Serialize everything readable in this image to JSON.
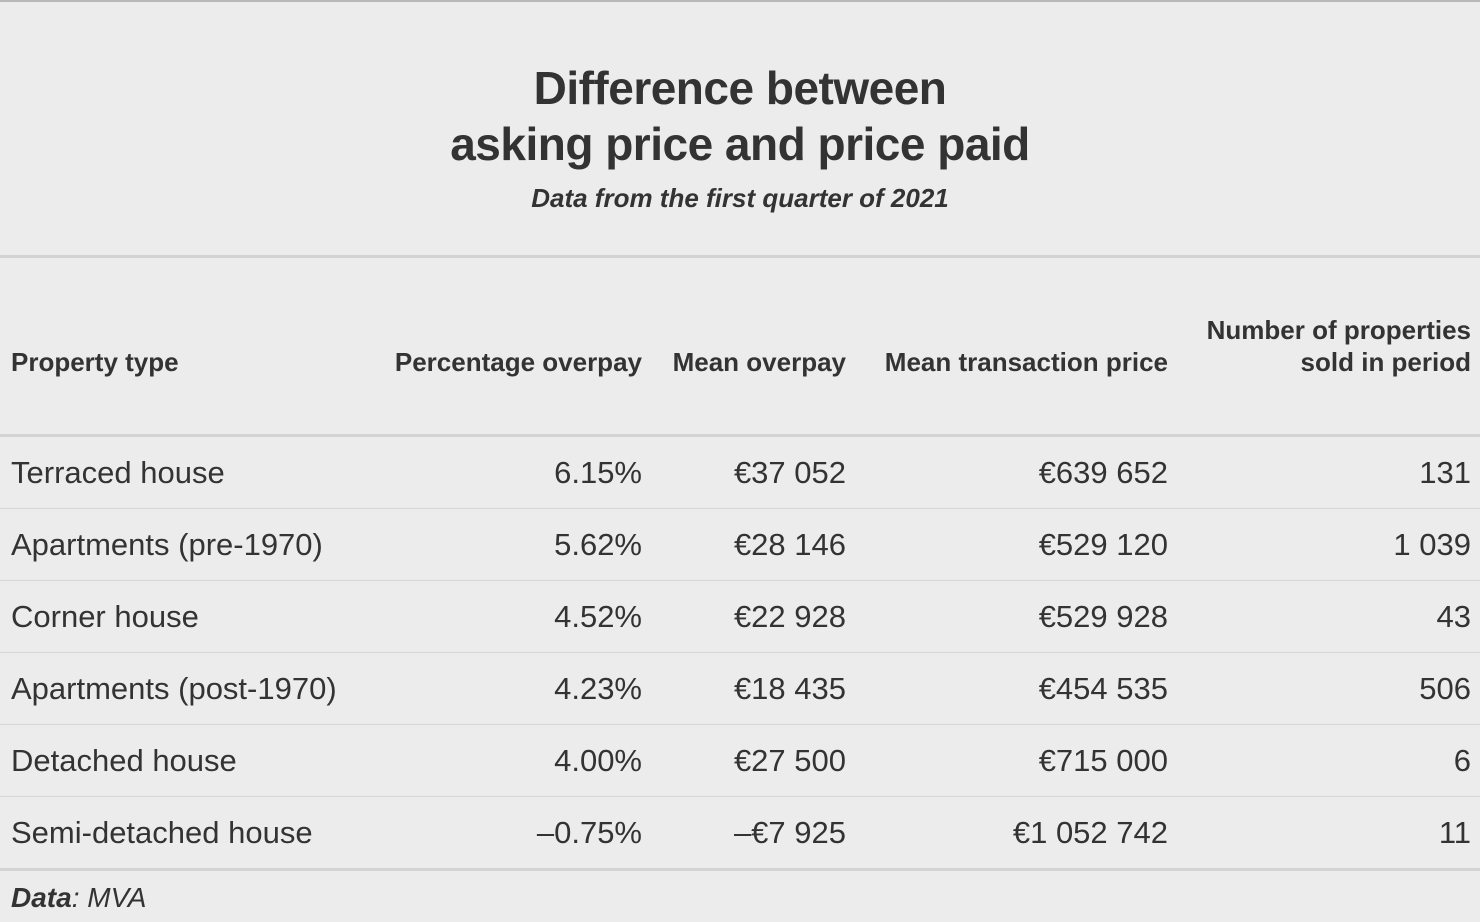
{
  "chart_data": {
    "type": "table",
    "title_line1": "Difference between",
    "title_line2": "asking price and price paid",
    "subtitle": "Data from the first quarter of 2021",
    "columns": [
      {
        "label": "Property type"
      },
      {
        "label": "Percentage overpay"
      },
      {
        "label": "Mean overpay"
      },
      {
        "label": "Mean transaction price"
      },
      {
        "label_line1": "Number of properties",
        "label_line2": "sold in period"
      }
    ],
    "rows": [
      [
        "Terraced house",
        "6.15%",
        "€37 052",
        "€639 652",
        "131"
      ],
      [
        "Apartments (pre-1970)",
        "5.62%",
        "€28 146",
        "€529 120",
        "1 039"
      ],
      [
        "Corner house",
        "4.52%",
        "€22 928",
        "€529 928",
        "43"
      ],
      [
        "Apartments (post-1970)",
        "4.23%",
        "€18 435",
        "€454 535",
        "506"
      ],
      [
        "Detached house",
        "4.00%",
        "€27 500",
        "€715 000",
        "6"
      ],
      [
        "Semi-detached house",
        "–0.75%",
        "–€7 925",
        "€1 052 742",
        "11"
      ]
    ],
    "source_label": "Data",
    "source_value": ": MVA"
  },
  "colors": {
    "background": "#ececec",
    "text": "#333333",
    "rule": "#d3d3d3",
    "row_divider": "#d6d6d6"
  }
}
